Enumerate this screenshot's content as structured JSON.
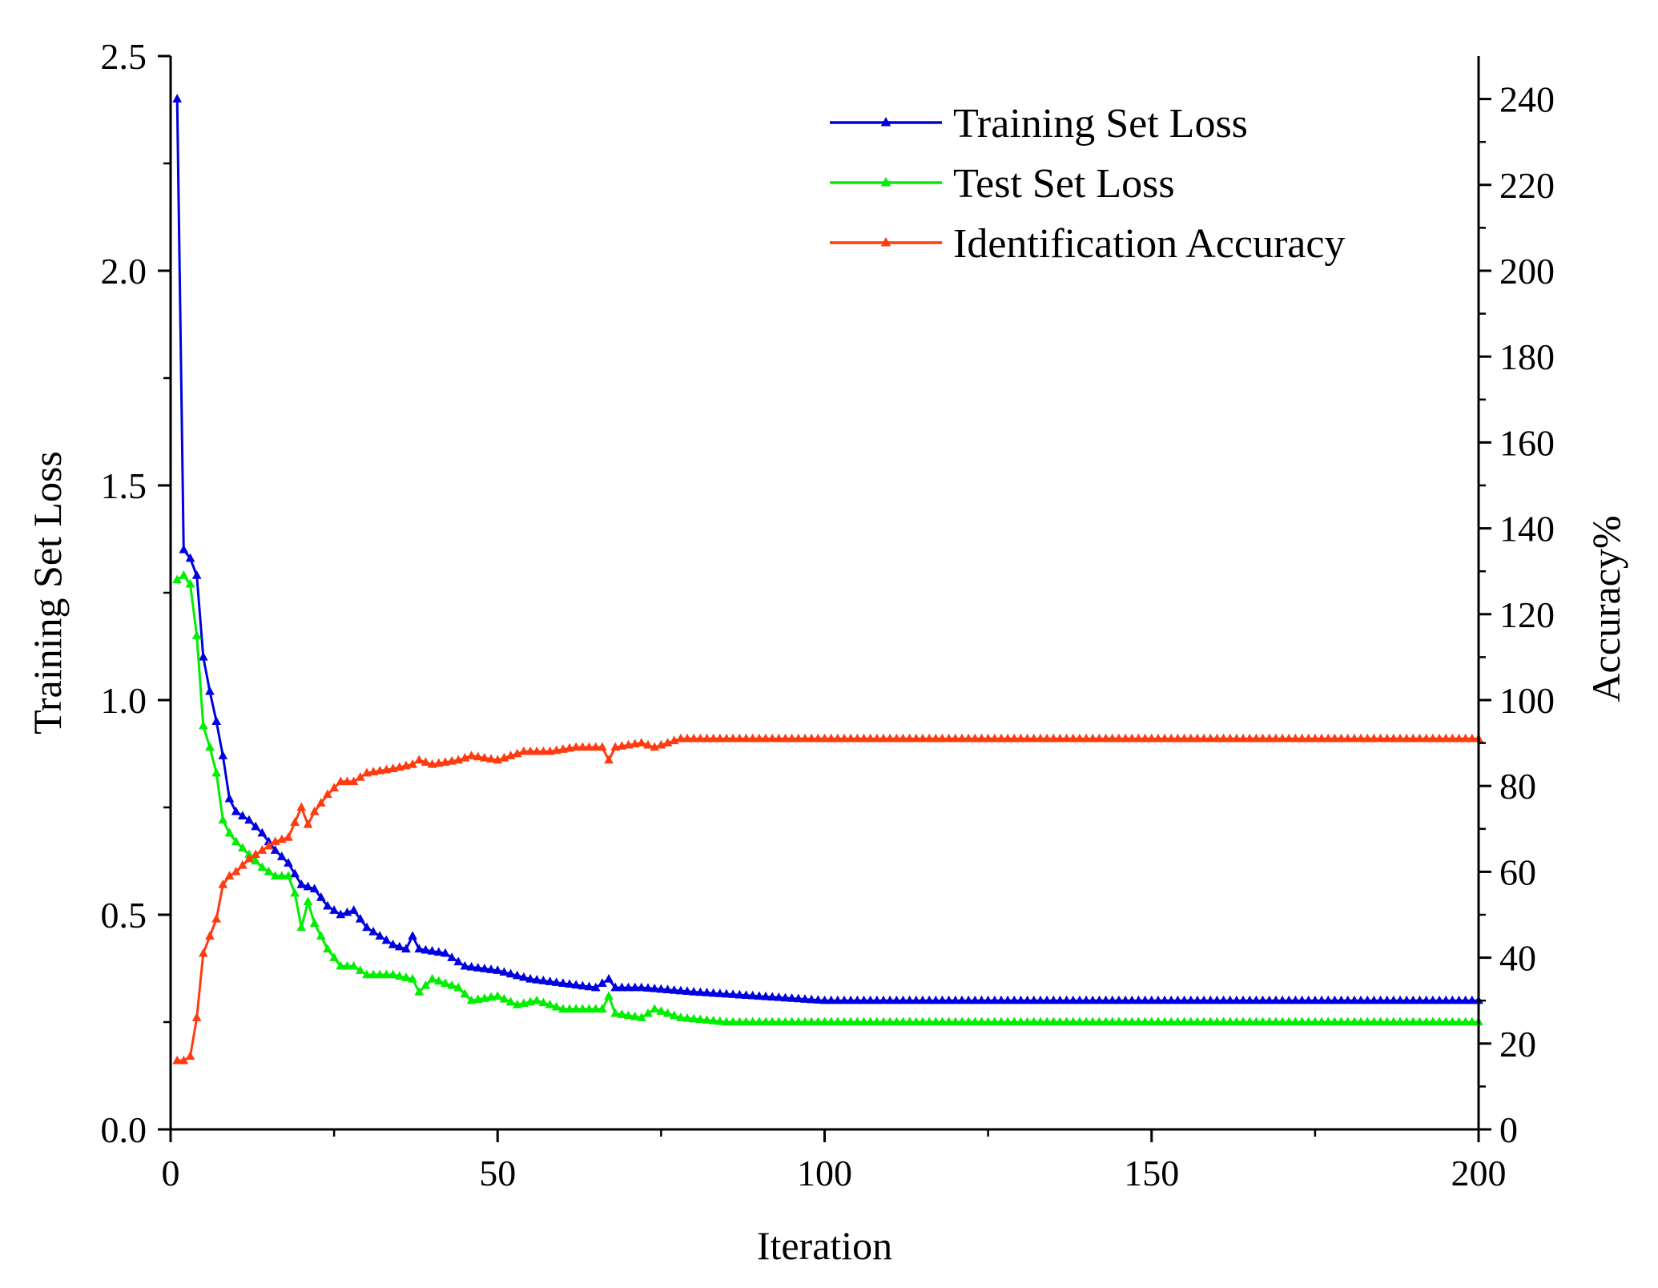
{
  "chart_data": {
    "type": "line",
    "title": "",
    "xlabel": "Iteration",
    "ylabel": "Training Set Loss",
    "y2label": "Accuracy%",
    "xlim": [
      0,
      200
    ],
    "ylim": [
      0,
      2.5
    ],
    "y2lim": [
      0,
      250
    ],
    "xticks": [
      "0",
      "50",
      "100",
      "150",
      "200"
    ],
    "yticks": [
      "0.0",
      "0.5",
      "1.0",
      "1.5",
      "2.0",
      "2.5"
    ],
    "y2ticks": [
      "0",
      "20",
      "40",
      "60",
      "80",
      "100",
      "120",
      "140",
      "160",
      "180",
      "200",
      "220",
      "240"
    ],
    "legend_position": "top-right",
    "series": [
      {
        "name": "Training Set Loss",
        "axis": "left",
        "color": "#0000e0",
        "marker": "triangle",
        "anchors": [
          [
            1,
            2.4
          ],
          [
            2,
            1.35
          ],
          [
            3,
            1.33
          ],
          [
            4,
            1.29
          ],
          [
            5,
            1.1
          ],
          [
            6,
            1.02
          ],
          [
            7,
            0.95
          ],
          [
            8,
            0.87
          ],
          [
            9,
            0.77
          ],
          [
            10,
            0.74
          ],
          [
            12,
            0.72
          ],
          [
            14,
            0.69
          ],
          [
            16,
            0.65
          ],
          [
            18,
            0.62
          ],
          [
            20,
            0.57
          ],
          [
            22,
            0.56
          ],
          [
            24,
            0.52
          ],
          [
            26,
            0.5
          ],
          [
            28,
            0.51
          ],
          [
            30,
            0.47
          ],
          [
            34,
            0.43
          ],
          [
            36,
            0.42
          ],
          [
            37,
            0.45
          ],
          [
            38,
            0.42
          ],
          [
            42,
            0.41
          ],
          [
            45,
            0.38
          ],
          [
            50,
            0.37
          ],
          [
            55,
            0.35
          ],
          [
            60,
            0.34
          ],
          [
            65,
            0.33
          ],
          [
            67,
            0.35
          ],
          [
            68,
            0.33
          ],
          [
            72,
            0.33
          ],
          [
            80,
            0.32
          ],
          [
            90,
            0.31
          ],
          [
            100,
            0.3
          ],
          [
            120,
            0.3
          ],
          [
            150,
            0.3
          ],
          [
            200,
            0.3
          ]
        ]
      },
      {
        "name": "Test Set Loss",
        "axis": "left",
        "color": "#00ee00",
        "marker": "triangle",
        "anchors": [
          [
            1,
            1.28
          ],
          [
            2,
            1.29
          ],
          [
            3,
            1.27
          ],
          [
            4,
            1.15
          ],
          [
            5,
            0.94
          ],
          [
            6,
            0.89
          ],
          [
            7,
            0.83
          ],
          [
            8,
            0.72
          ],
          [
            9,
            0.69
          ],
          [
            10,
            0.67
          ],
          [
            12,
            0.64
          ],
          [
            14,
            0.61
          ],
          [
            16,
            0.59
          ],
          [
            18,
            0.59
          ],
          [
            19,
            0.55
          ],
          [
            20,
            0.47
          ],
          [
            21,
            0.53
          ],
          [
            22,
            0.48
          ],
          [
            24,
            0.42
          ],
          [
            26,
            0.38
          ],
          [
            28,
            0.38
          ],
          [
            30,
            0.36
          ],
          [
            34,
            0.36
          ],
          [
            37,
            0.35
          ],
          [
            38,
            0.32
          ],
          [
            40,
            0.35
          ],
          [
            44,
            0.33
          ],
          [
            46,
            0.3
          ],
          [
            50,
            0.31
          ],
          [
            53,
            0.29
          ],
          [
            56,
            0.3
          ],
          [
            60,
            0.28
          ],
          [
            66,
            0.28
          ],
          [
            67,
            0.31
          ],
          [
            68,
            0.27
          ],
          [
            72,
            0.26
          ],
          [
            74,
            0.28
          ],
          [
            78,
            0.26
          ],
          [
            85,
            0.25
          ],
          [
            100,
            0.25
          ],
          [
            200,
            0.25
          ]
        ]
      },
      {
        "name": "Identification Accuracy",
        "axis": "right",
        "color": "#ff3b10",
        "marker": "triangle",
        "anchors": [
          [
            1,
            16
          ],
          [
            2,
            16
          ],
          [
            3,
            17
          ],
          [
            4,
            26
          ],
          [
            5,
            41
          ],
          [
            6,
            45
          ],
          [
            7,
            49
          ],
          [
            8,
            57
          ],
          [
            9,
            59
          ],
          [
            10,
            60
          ],
          [
            12,
            63
          ],
          [
            14,
            65
          ],
          [
            16,
            67
          ],
          [
            18,
            68
          ],
          [
            20,
            75
          ],
          [
            21,
            71
          ],
          [
            22,
            74
          ],
          [
            24,
            78
          ],
          [
            26,
            81
          ],
          [
            28,
            81
          ],
          [
            30,
            83
          ],
          [
            34,
            84
          ],
          [
            37,
            85
          ],
          [
            38,
            86
          ],
          [
            40,
            85
          ],
          [
            44,
            86
          ],
          [
            46,
            87
          ],
          [
            50,
            86
          ],
          [
            54,
            88
          ],
          [
            58,
            88
          ],
          [
            62,
            89
          ],
          [
            66,
            89
          ],
          [
            67,
            86
          ],
          [
            68,
            89
          ],
          [
            72,
            90
          ],
          [
            74,
            89
          ],
          [
            78,
            91
          ],
          [
            90,
            91
          ],
          [
            100,
            91
          ],
          [
            200,
            91
          ]
        ]
      }
    ]
  }
}
